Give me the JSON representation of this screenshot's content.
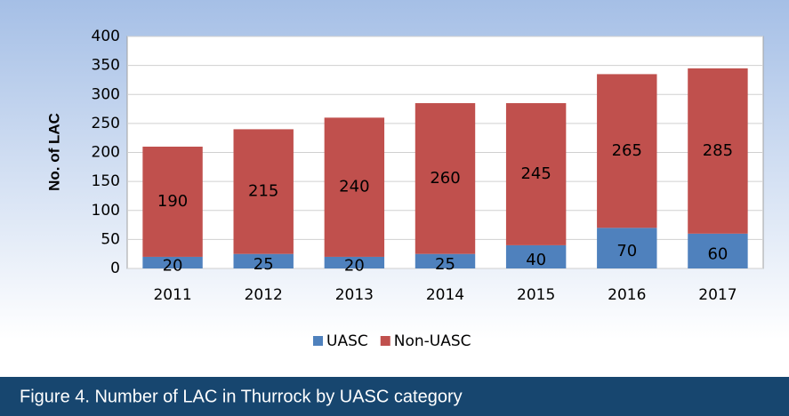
{
  "chart_data": {
    "type": "stacked_bar",
    "y_label": "No. of LAC",
    "caption": "Figure 4. Number of LAC in Thurrock by UASC category",
    "categories": [
      "2011",
      "2012",
      "2013",
      "2014",
      "2015",
      "2016",
      "2017"
    ],
    "series": [
      {
        "name": "UASC",
        "color": "#4f81bd",
        "values": [
          20,
          25,
          20,
          25,
          40,
          70,
          60
        ]
      },
      {
        "name": "Non-UASC",
        "color": "#c0504d",
        "values": [
          190,
          215,
          240,
          260,
          245,
          265,
          285
        ]
      }
    ],
    "ylim": [
      0,
      400
    ],
    "yticks": [
      0,
      50,
      100,
      150,
      200,
      250,
      300,
      350,
      400
    ],
    "grid": true,
    "legend": "bottom"
  }
}
